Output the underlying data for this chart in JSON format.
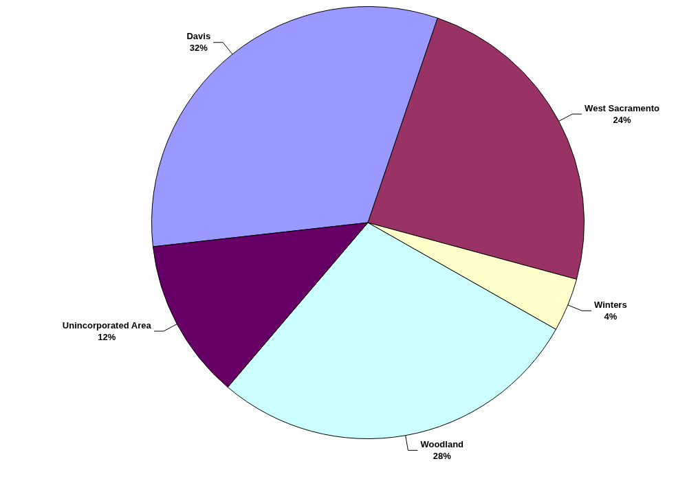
{
  "chart_data": {
    "type": "pie",
    "categories": [
      "Davis",
      "West Sacramento",
      "Winters",
      "Woodland",
      "Unincorporated Area"
    ],
    "values": [
      32,
      24,
      4,
      28,
      12
    ],
    "value_labels": [
      "32%",
      "24%",
      "4%",
      "28%",
      "12%"
    ],
    "colors": [
      "#9999ff",
      "#993366",
      "#ffffcc",
      "#ccffff",
      "#660066"
    ],
    "legend": false
  }
}
